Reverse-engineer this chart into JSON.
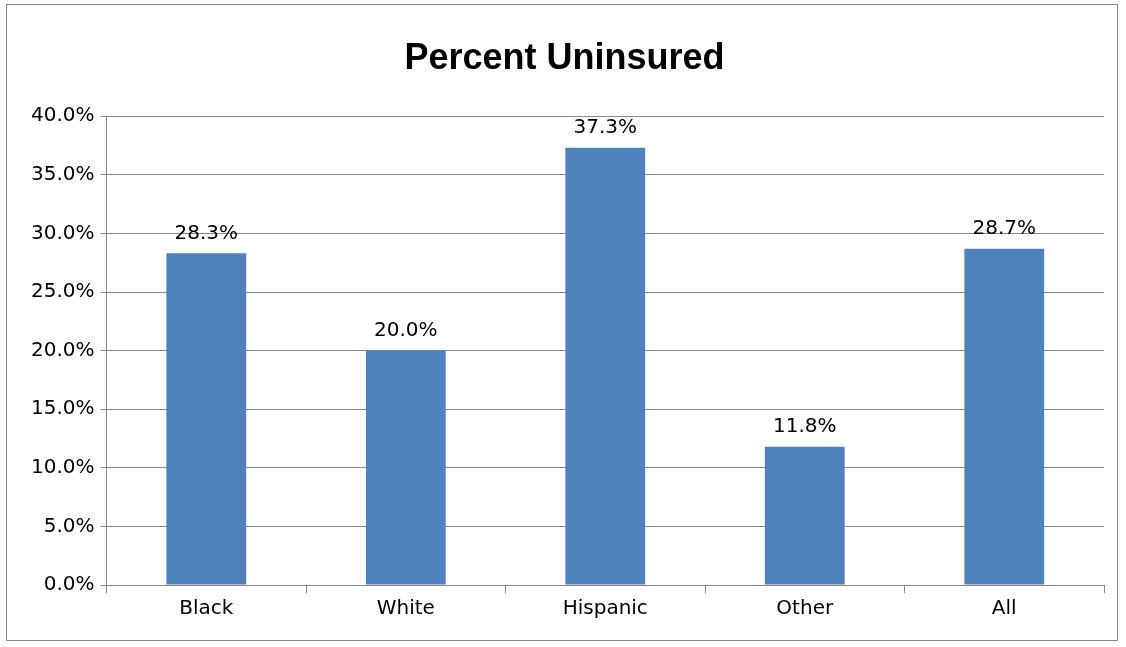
{
  "chart_data": {
    "type": "bar",
    "title": "Percent Uninsured",
    "categories": [
      "Black",
      "White",
      "Hispanic",
      "Other",
      "All"
    ],
    "values": [
      28.3,
      20.0,
      37.3,
      11.8,
      28.7
    ],
    "value_labels": [
      "28.3%",
      "20.0%",
      "37.3%",
      "11.8%",
      "28.7%"
    ],
    "color": "#4f81bd",
    "ylim": [
      0,
      40
    ],
    "yticks": [
      {
        "value": 0,
        "label": "0.0%"
      },
      {
        "value": 5,
        "label": "5.0%"
      },
      {
        "value": 10,
        "label": "10.0%"
      },
      {
        "value": 15,
        "label": "15.0%"
      },
      {
        "value": 20,
        "label": "20.0%"
      },
      {
        "value": 25,
        "label": "25.0%"
      },
      {
        "value": 30,
        "label": "30.0%"
      },
      {
        "value": 35,
        "label": "35.0%"
      },
      {
        "value": 40,
        "label": "40.0%"
      }
    ],
    "grid": "y",
    "legend": false
  }
}
